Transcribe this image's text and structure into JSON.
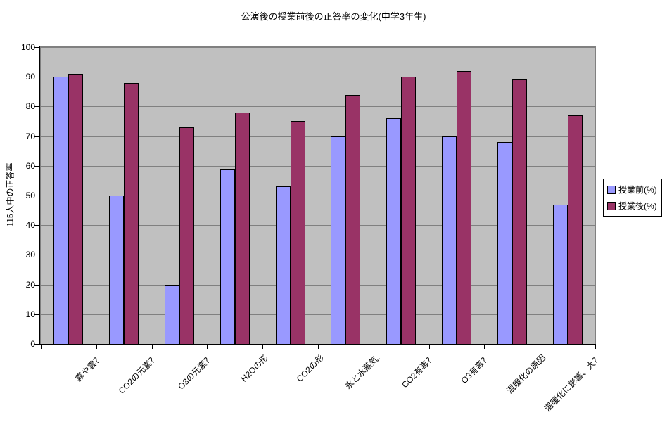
{
  "chart_data": {
    "type": "bar",
    "title": "公演後の授業前後の正答率の変化(中学3年生)",
    "ylabel": "115人中の正答率",
    "xlabel": "",
    "ylim": [
      0,
      100
    ],
    "ytick_step": 10,
    "grid": true,
    "legend_position": "right",
    "categories": [
      "霧や雲？",
      "CO2の元素？",
      "O3の元素？",
      "H2Oの形",
      "CO2の形",
      "氷と水蒸気.",
      "CO2有毒？",
      "O3有毒？",
      "温暖化の原因",
      "温暖化に影響、大？"
    ],
    "series": [
      {
        "name": "授業前(%)",
        "color": "#9999FF",
        "values": [
          90,
          50,
          20,
          59,
          53,
          70,
          76,
          70,
          68,
          47
        ]
      },
      {
        "name": "授業後(%)",
        "color": "#993366",
        "values": [
          91,
          88,
          73,
          78,
          75,
          84,
          90,
          92,
          89,
          77
        ]
      }
    ],
    "colors": {
      "plot_bg": "#C0C0C0",
      "gridline": "#808080",
      "axis": "#000000",
      "bar_border": "#000000",
      "legend_bg": "#FFFFFF",
      "page_bg": "#FFFFFF"
    }
  }
}
